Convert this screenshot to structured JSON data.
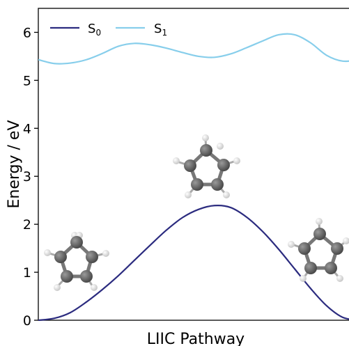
{
  "chart_data": {
    "type": "line",
    "xlabel": "LIIC Pathway",
    "ylabel": "Energy / eV",
    "xlim": [
      0,
      1
    ],
    "ylim": [
      0,
      6.5
    ],
    "yticks": [
      "0",
      "1",
      "2",
      "3",
      "4",
      "5",
      "6"
    ],
    "legend_placement": "top-left",
    "grid": false,
    "series": [
      {
        "name_main": "S",
        "name_sub": "0",
        "color": "#2b2b7f",
        "x": [
          0,
          0.05,
          0.1,
          0.15,
          0.2,
          0.25,
          0.3,
          0.35,
          0.4,
          0.45,
          0.5,
          0.55,
          0.6,
          0.65,
          0.7,
          0.75,
          0.8,
          0.85,
          0.9,
          0.95,
          1.0
        ],
        "y": [
          0.0,
          0.04,
          0.16,
          0.38,
          0.64,
          0.93,
          1.25,
          1.57,
          1.88,
          2.14,
          2.31,
          2.39,
          2.35,
          2.15,
          1.85,
          1.48,
          1.07,
          0.66,
          0.3,
          0.06,
          0.0
        ]
      },
      {
        "name_main": "S",
        "name_sub": "1",
        "color": "#87ceeb",
        "x": [
          0,
          0.05,
          0.1,
          0.15,
          0.2,
          0.25,
          0.3,
          0.35,
          0.4,
          0.45,
          0.5,
          0.55,
          0.6,
          0.65,
          0.7,
          0.75,
          0.8,
          0.85,
          0.9,
          0.95,
          1.0
        ],
        "y": [
          5.43,
          5.35,
          5.36,
          5.43,
          5.56,
          5.71,
          5.77,
          5.74,
          5.67,
          5.58,
          5.5,
          5.48,
          5.55,
          5.68,
          5.82,
          5.95,
          5.95,
          5.78,
          5.52,
          5.4,
          5.43
        ]
      }
    ]
  }
}
